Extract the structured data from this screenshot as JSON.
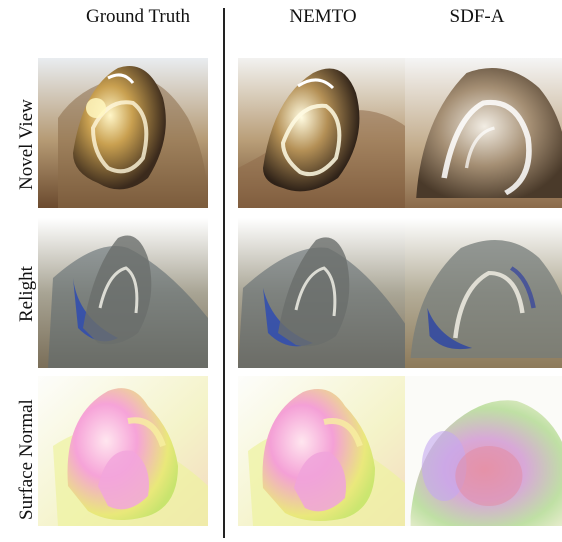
{
  "columns": [
    "Ground Truth",
    "NEMTO",
    "SDF-A"
  ],
  "rows": [
    "Novel View",
    "Relight",
    "Surface Normal"
  ]
}
